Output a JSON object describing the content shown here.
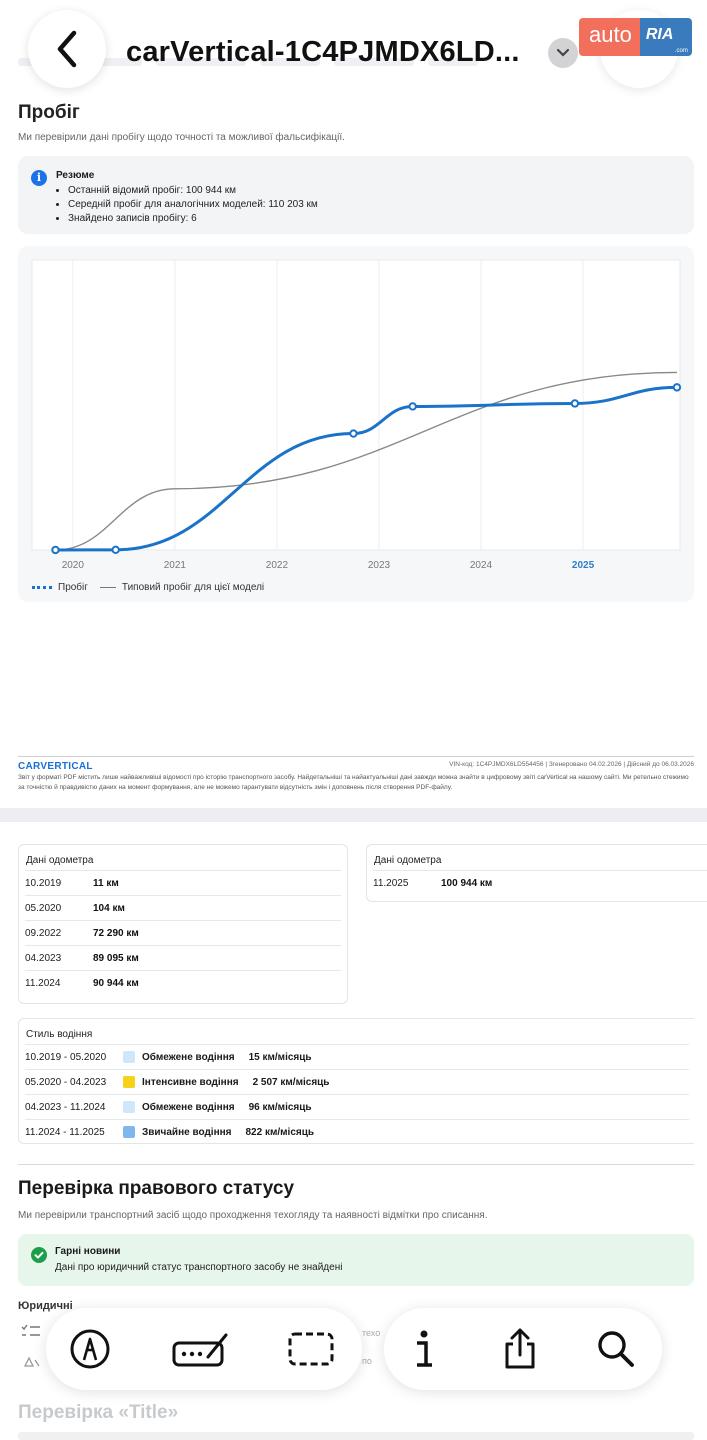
{
  "header": {
    "title": "carVertical-1C4PJMDX6LD...",
    "brand": {
      "auto": "auto",
      "ria": "RIA",
      "domain": ".com"
    }
  },
  "mileage": {
    "heading": "Пробіг",
    "subtitle": "Ми перевірили дані пробігу щодо точності та можливої фальсифікації.",
    "summary": {
      "title": "Резюме",
      "items": [
        "Останній відомий пробіг: 100 944 км",
        "Середній пробіг для аналогічних моделей: 110 203 км",
        "Знайдено записів пробігу: 6"
      ]
    },
    "legend": {
      "series1": "Пробіг",
      "series2": "Типовий пробіг для цієї моделі"
    }
  },
  "chart_data": {
    "type": "line",
    "x_ticks": [
      "2020",
      "2021",
      "2022",
      "2023",
      "2024",
      "2025"
    ],
    "highlight_tick": "2025",
    "series": [
      {
        "name": "Пробіг",
        "color": "#1a73c8",
        "x": [
          2019.83,
          2020.42,
          2022.75,
          2023.33,
          2024.92,
          2025.92
        ],
        "values": [
          11,
          104,
          72290,
          89095,
          90944,
          100944
        ]
      },
      {
        "name": "Типовий пробіг для цієї моделі",
        "color": "#888888",
        "x": [
          2019.83,
          2025.92
        ],
        "values": [
          11,
          110203
        ]
      }
    ],
    "xlim": [
      2019.6,
      2025.95
    ],
    "ylim": [
      0,
      180000
    ],
    "grid": true
  },
  "footer": {
    "logo": "CARVERTICAL",
    "meta": "VIN-код:  1C4PJMDX6LD554456   |   Згенеровано  04.02.2026   |   Дійсний до  06.03.2026",
    "disclaimer": "Звіт у форматі PDF містить лише найважливіші відомості про історію транспортного засобу. Найдетальніші та найактуальніші дані завжди можна знайти в цифровому звіті carVertical на нашому сайті. Ми ретельно стежимо за точністю й правдивістю даних на момент формування, але не можемо гарантувати відсутність змін і доповнень після створення PDF-файлу."
  },
  "odometer": {
    "title": "Дані одометра",
    "left": [
      {
        "date": "10.2019",
        "value": "11 км"
      },
      {
        "date": "05.2020",
        "value": "104 км"
      },
      {
        "date": "09.2022",
        "value": "72 290 км"
      },
      {
        "date": "04.2023",
        "value": "89 095 км"
      },
      {
        "date": "11.2024",
        "value": "90 944 км"
      }
    ],
    "right": [
      {
        "date": "11.2025",
        "value": "100 944 км"
      }
    ]
  },
  "driving_style": {
    "title": "Стиль водіння",
    "rows": [
      {
        "period": "10.2019 - 05.2020",
        "label": "Обмежене водіння",
        "rate": "15 км/місяць",
        "color": "#cfe6fb"
      },
      {
        "period": "05.2020 - 04.2023",
        "label": "Інтенсивне водіння",
        "rate": "2 507 км/місяць",
        "color": "#f6d21a"
      },
      {
        "period": "04.2023 - 11.2024",
        "label": "Обмежене водіння",
        "rate": "96 км/місяць",
        "color": "#cfe6fb"
      },
      {
        "period": "11.2024 - 11.2025",
        "label": "Звичайне водіння",
        "rate": "822 км/місяць",
        "color": "#7fb6ee"
      }
    ]
  },
  "legal": {
    "heading": "Перевірка правового статусу",
    "subtitle": "Ми перевірили транспортний засіб щодо проходження техогляду та наявності відмітки про списання.",
    "good": {
      "title": "Гарні новини",
      "text": "Дані про юридичний статус транспортного засобу не знайдені"
    },
    "section": "Юридичні",
    "ghost1": "техо",
    "ghost2": "по"
  },
  "title_check": {
    "heading": "Перевірка «Title»"
  }
}
